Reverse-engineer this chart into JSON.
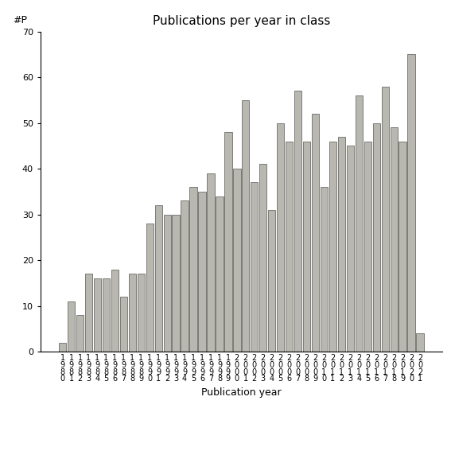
{
  "title": "Publications per year in class",
  "xlabel": "Publication year",
  "ylabel": "#P",
  "start_year": 1980,
  "values": [
    2,
    11,
    8,
    17,
    16,
    16,
    18,
    12,
    17,
    17,
    28,
    32,
    30,
    30,
    33,
    36,
    35,
    39,
    34,
    48,
    40,
    55,
    37,
    41,
    31,
    50,
    46,
    57,
    46,
    52,
    36,
    46,
    47,
    45,
    56,
    46,
    50,
    58,
    49,
    46,
    65,
    4
  ],
  "bar_color": "#b8b8b0",
  "bar_edge_color": "#555555",
  "ylim": [
    0,
    70
  ],
  "yticks": [
    0,
    10,
    20,
    30,
    40,
    50,
    60,
    70
  ],
  "background_color": "#ffffff",
  "title_fontsize": 11,
  "axis_label_fontsize": 9,
  "tick_fontsize": 8,
  "bar_linewidth": 0.5
}
